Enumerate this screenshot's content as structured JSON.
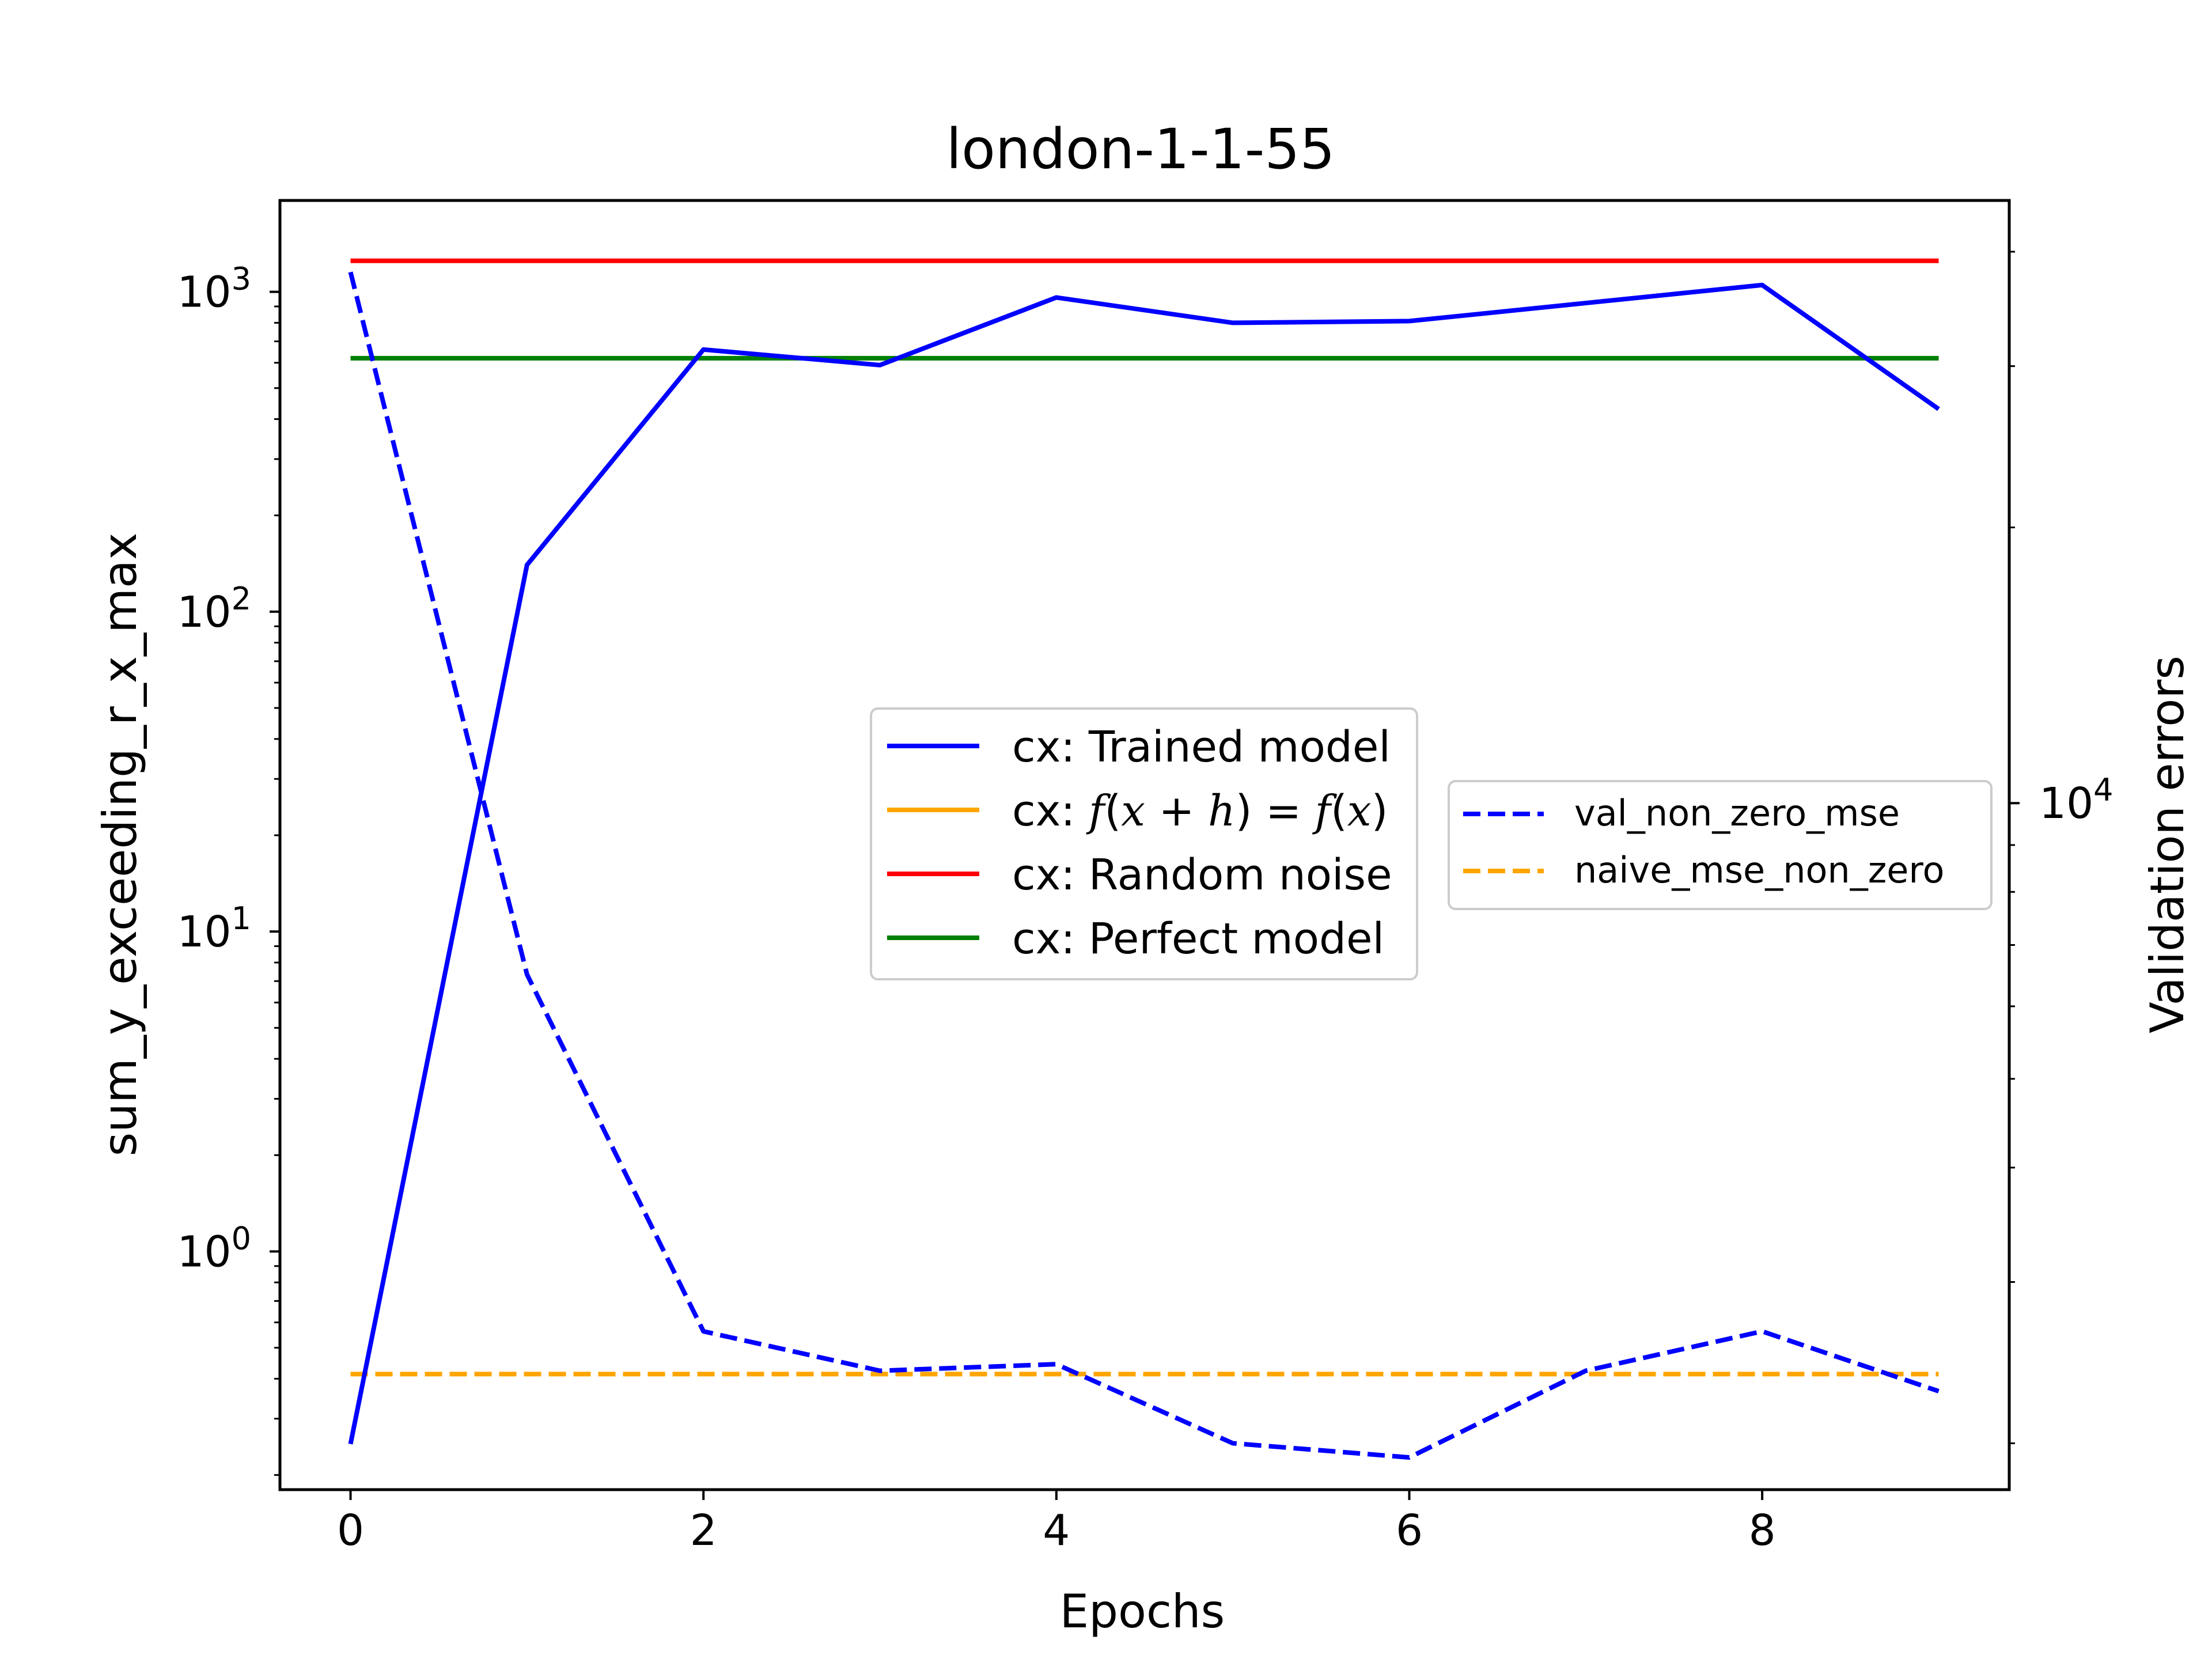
{
  "chart_data": {
    "type": "line",
    "title": "london-1-1-55",
    "xlabel": "Epochs",
    "ylabel": "sum_y_exceeding_r_x_max",
    "y2label": "Validation errors",
    "x": [
      0,
      1,
      2,
      3,
      4,
      5,
      6,
      7,
      8,
      9
    ],
    "xlim": [
      -0.4,
      9.4
    ],
    "xticks": [
      0,
      2,
      4,
      6,
      8
    ],
    "yscale": "log",
    "ylim": [
      0.18,
      1930
    ],
    "y2scale": "log",
    "y2lim": [
      1780,
      45500
    ],
    "yticks": [
      {
        "base": "10",
        "exp": "0",
        "value": 1
      },
      {
        "base": "10",
        "exp": "1",
        "value": 10
      },
      {
        "base": "10",
        "exp": "2",
        "value": 100
      },
      {
        "base": "10",
        "exp": "3",
        "value": 1000
      }
    ],
    "y2ticks": [
      {
        "base": "10",
        "exp": "4",
        "value": 10000
      }
    ],
    "series": [
      {
        "name": "cx: Trained model",
        "axis": "left",
        "color": "#0000ff",
        "style": "solid",
        "values": [
          0.25,
          140,
          660,
          590,
          960,
          800,
          810,
          null,
          1050,
          430
        ]
      },
      {
        "name": "cx: f(x + h) = f(x)",
        "axis": "left",
        "color": "#ffa500",
        "style": "solid",
        "values": [
          null,
          null,
          null,
          null,
          null,
          null,
          null,
          null,
          null,
          null
        ]
      },
      {
        "name": "cx: Random noise",
        "axis": "left",
        "color": "#ff0000",
        "style": "solid",
        "values": [
          1250,
          1250,
          1250,
          1250,
          1250,
          1250,
          1250,
          1250,
          1250,
          1250
        ]
      },
      {
        "name": "cx: Perfect model",
        "axis": "left",
        "color": "#008000",
        "style": "solid",
        "values": [
          620,
          620,
          620,
          620,
          620,
          620,
          620,
          620,
          620,
          620
        ]
      },
      {
        "name": "val_non_zero_mse",
        "axis": "right",
        "color": "#0000ff",
        "style": "dashed",
        "values": [
          38000,
          6500,
          2650,
          2400,
          2440,
          2000,
          1930,
          2400,
          2650,
          2280
        ]
      },
      {
        "name": "naive_mse_non_zero",
        "axis": "right",
        "color": "#ffa500",
        "style": "dashed",
        "values": [
          2380,
          2380,
          2380,
          2380,
          2380,
          2380,
          2380,
          2380,
          2380,
          2380
        ]
      }
    ],
    "legends": [
      {
        "position": "center",
        "entries": [
          "cx: Trained model",
          "cx: f(x + h) = f(x)",
          "cx: Random noise",
          "cx: Perfect model"
        ]
      },
      {
        "position": "center-right",
        "entries": [
          "val_non_zero_mse",
          "naive_mse_non_zero"
        ]
      }
    ],
    "grid": false
  }
}
